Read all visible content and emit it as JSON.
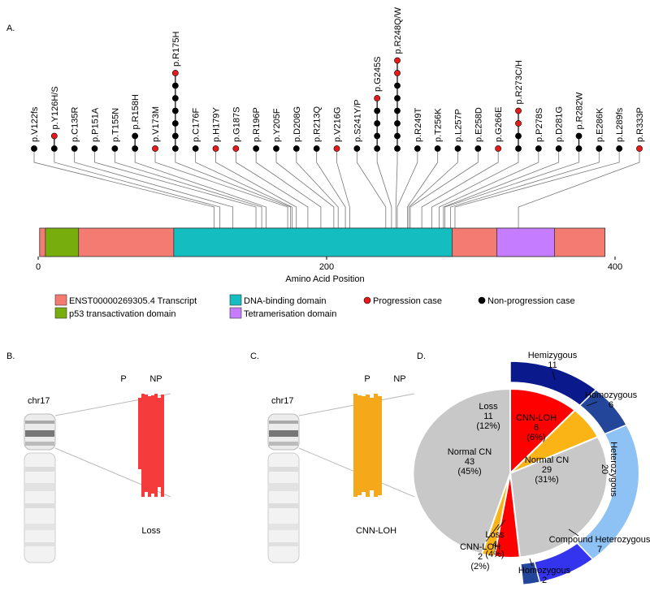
{
  "chart_data": [
    {
      "type": "lollipop",
      "panel_label": "A.",
      "xlabel": "Amino Acid Position",
      "xlim": [
        0,
        400
      ],
      "xticks": [
        0,
        200,
        400
      ],
      "series": [
        {
          "name": "Progression case",
          "color": "#e8191b"
        },
        {
          "name": "Non-progression case",
          "color": "#000000"
        }
      ],
      "domains": [
        {
          "name": "ENST00000269305.4 Transcript",
          "start": 1,
          "end": 393,
          "color": "#f47b72"
        },
        {
          "name": "p53 transactivation domain",
          "start": 5,
          "end": 28,
          "color": "#77ad0c"
        },
        {
          "name": "DNA-binding domain",
          "start": 94,
          "end": 287,
          "color": "#14bdbf"
        },
        {
          "name": "Tetramerisation domain",
          "start": 318,
          "end": 358,
          "color": "#c57cff"
        }
      ],
      "mutations": [
        {
          "label": "p.V122fs",
          "position": 122,
          "progression": 0,
          "non_progression": 1
        },
        {
          "label": "p.Y126H/S",
          "position": 126,
          "progression": 1,
          "non_progression": 1
        },
        {
          "label": "p.C135R",
          "position": 135,
          "progression": 0,
          "non_progression": 1
        },
        {
          "label": "p.P151A",
          "position": 151,
          "progression": 0,
          "non_progression": 1
        },
        {
          "label": "p.T155N",
          "position": 155,
          "progression": 0,
          "non_progression": 1
        },
        {
          "label": "p.R158H",
          "position": 158,
          "progression": 0,
          "non_progression": 2
        },
        {
          "label": "p.V173M",
          "position": 173,
          "progression": 1,
          "non_progression": 0
        },
        {
          "label": "p.R175H",
          "position": 175,
          "progression": 1,
          "non_progression": 6
        },
        {
          "label": "p.C176F",
          "position": 176,
          "progression": 0,
          "non_progression": 1
        },
        {
          "label": "p.H179Y",
          "position": 179,
          "progression": 1,
          "non_progression": 0
        },
        {
          "label": "p.G187S",
          "position": 187,
          "progression": 1,
          "non_progression": 0
        },
        {
          "label": "p.R196P",
          "position": 196,
          "progression": 0,
          "non_progression": 1
        },
        {
          "label": "p.Y205F",
          "position": 205,
          "progression": 0,
          "non_progression": 1
        },
        {
          "label": "p.D208G",
          "position": 208,
          "progression": 0,
          "non_progression": 1
        },
        {
          "label": "p.R213Q",
          "position": 213,
          "progression": 0,
          "non_progression": 1
        },
        {
          "label": "p.V216G",
          "position": 216,
          "progression": 1,
          "non_progression": 0
        },
        {
          "label": "p.S241Y/P",
          "position": 241,
          "progression": 0,
          "non_progression": 1
        },
        {
          "label": "p.G245S",
          "position": 245,
          "progression": 1,
          "non_progression": 4
        },
        {
          "label": "p.R248Q/W",
          "position": 248,
          "progression": 2,
          "non_progression": 6
        },
        {
          "label": "p.R249T",
          "position": 249,
          "progression": 0,
          "non_progression": 1
        },
        {
          "label": "p.T256K",
          "position": 256,
          "progression": 0,
          "non_progression": 1
        },
        {
          "label": "p.L257P",
          "position": 257,
          "progression": 0,
          "non_progression": 1
        },
        {
          "label": "p.E258D",
          "position": 258,
          "progression": 0,
          "non_progression": 1
        },
        {
          "label": "p.G266E",
          "position": 266,
          "progression": 1,
          "non_progression": 0
        },
        {
          "label": "p.R273C/H",
          "position": 273,
          "progression": 2,
          "non_progression": 2
        },
        {
          "label": "p.P278S",
          "position": 278,
          "progression": 0,
          "non_progression": 1
        },
        {
          "label": "p.D281G",
          "position": 281,
          "progression": 0,
          "non_progression": 1
        },
        {
          "label": "p.R282W",
          "position": 282,
          "progression": 0,
          "non_progression": 2
        },
        {
          "label": "p.E286K",
          "position": 286,
          "progression": 0,
          "non_progression": 1
        },
        {
          "label": "p.L289fs",
          "position": 289,
          "progression": 0,
          "non_progression": 1
        },
        {
          "label": "p.R333P",
          "position": 333,
          "progression": 1,
          "non_progression": 0
        }
      ]
    },
    {
      "type": "pie",
      "panel_label": "D.",
      "inner": {
        "labels": [
          "Loss",
          "CNN-LOH",
          "Normal CN",
          "Loss",
          "CNN-LOH",
          "Normal CN"
        ],
        "values": [
          11,
          6,
          29,
          4,
          2,
          43
        ],
        "percentage_labels": [
          "(12%)",
          "(6%)",
          "(31%)",
          "(4%)",
          "(2%)",
          "(45%)"
        ],
        "colors": [
          "#ff0000",
          "#fbb416",
          "#c8c8c8",
          "#ff0000",
          "#fbb416",
          "#c8c8c8"
        ]
      },
      "outer": {
        "labels": [
          "Hemizygous",
          "Homozygous",
          "Heterozygous",
          "Compound Heterozygous",
          "Homozygous"
        ],
        "values": [
          11,
          6,
          20,
          7,
          2
        ],
        "colors": [
          "#0a1a8c",
          "#23469a",
          "#8ec2f5",
          "#3434ee",
          "#23469a"
        ]
      }
    }
  ],
  "panels": [
    {
      "panel_label": "B.",
      "chromosome": "chr17",
      "columns": [
        "P",
        "NP"
      ],
      "caption": "Loss",
      "color": "#f53b3b"
    },
    {
      "panel_label": "C.",
      "chromosome": "chr17",
      "columns": [
        "P",
        "NP"
      ],
      "caption": "CNN-LOH",
      "color": "#f5a81a"
    }
  ]
}
